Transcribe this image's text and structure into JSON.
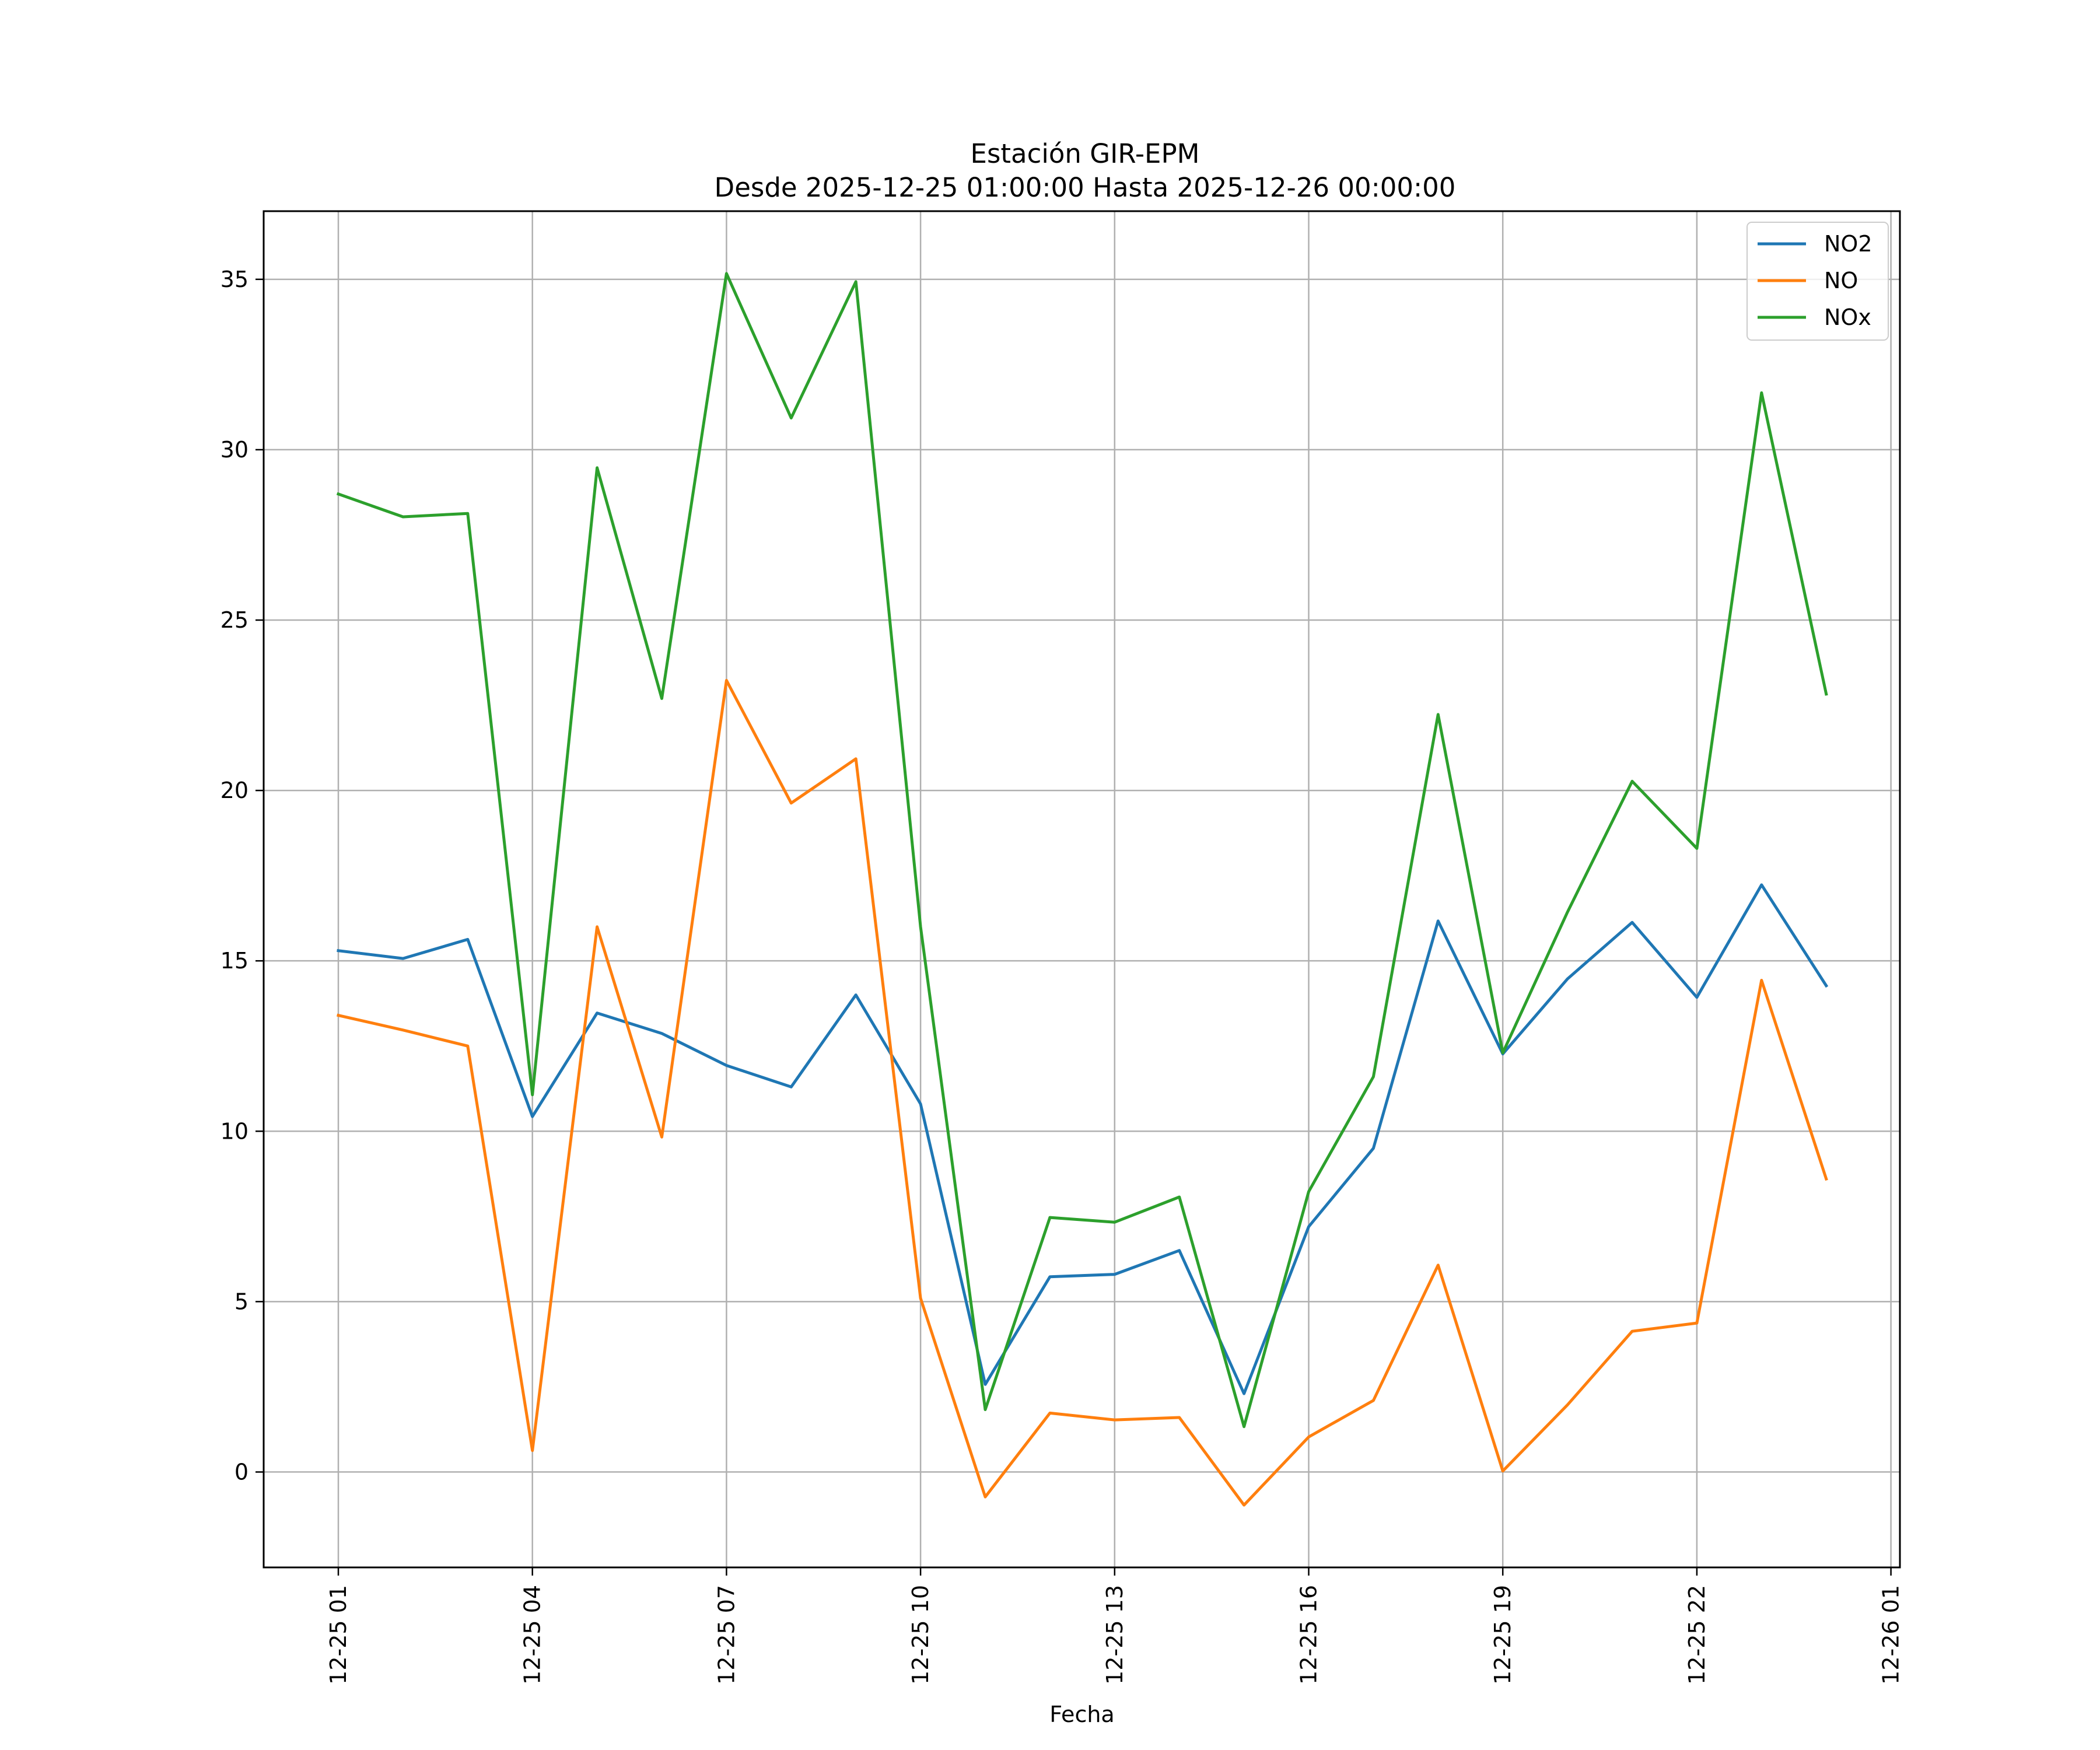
{
  "chart_data": {
    "type": "line",
    "title": "Estación GIR-EPM",
    "subtitle": "Desde 2025-12-25 01:00:00 Hasta 2025-12-26 00:00:00",
    "xlabel": "Fecha",
    "ylabel": "",
    "grid": true,
    "legend_position": "top-right",
    "xlim_hours": [
      0.0,
      24.0
    ],
    "ylim": [
      -2.8,
      37.0
    ],
    "x_tick_labels": [
      "12-25 01",
      "12-25 04",
      "12-25 07",
      "12-25 10",
      "12-25 13",
      "12-25 16",
      "12-25 19",
      "12-25 22",
      "12-26 01"
    ],
    "x_tick_hours": [
      1,
      4,
      7,
      10,
      13,
      16,
      19,
      22,
      25
    ],
    "y_ticks": [
      0,
      5,
      10,
      15,
      20,
      25,
      30,
      35
    ],
    "x_hours": [
      1,
      2,
      3,
      4,
      5,
      6,
      7,
      8,
      9,
      10,
      11,
      12,
      13,
      14,
      15,
      16,
      17,
      18,
      19,
      20,
      21,
      22,
      23,
      24
    ],
    "series": [
      {
        "name": "NO2",
        "color": "#1f77b4",
        "values": [
          15.3,
          15.07,
          15.63,
          10.43,
          13.47,
          12.87,
          11.93,
          11.3,
          14.0,
          10.8,
          2.57,
          5.73,
          5.8,
          6.5,
          2.3,
          7.2,
          9.5,
          16.17,
          12.27,
          14.47,
          16.13,
          13.93,
          17.23,
          14.27
        ]
      },
      {
        "name": "NO",
        "color": "#ff7f0e",
        "values": [
          13.4,
          12.97,
          12.5,
          0.63,
          16.0,
          9.83,
          23.23,
          19.63,
          20.93,
          5.1,
          -0.73,
          1.73,
          1.53,
          1.6,
          -0.97,
          1.03,
          2.1,
          6.07,
          0.03,
          1.97,
          4.13,
          4.37,
          14.43,
          8.6
        ]
      },
      {
        "name": "NOx",
        "color": "#2ca02c",
        "values": [
          28.7,
          28.03,
          28.13,
          11.07,
          29.47,
          22.7,
          35.17,
          30.93,
          34.93,
          16.0,
          1.83,
          7.47,
          7.33,
          8.07,
          1.33,
          8.23,
          11.6,
          22.23,
          12.3,
          16.43,
          20.27,
          18.3,
          31.67,
          22.83
        ]
      }
    ]
  }
}
